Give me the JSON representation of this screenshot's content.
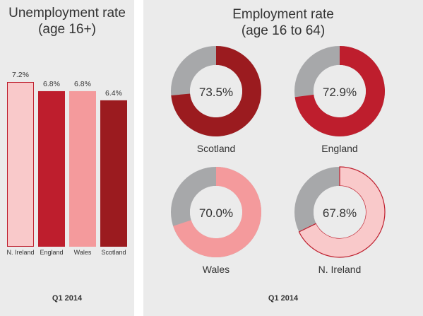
{
  "left_panel": {
    "title_line1": "Unemployment rate",
    "title_line2": "(age 16+)",
    "footer": "Q1 2014"
  },
  "right_panel": {
    "title_line1": "Employment rate",
    "title_line2": "(age 16 to 64)",
    "footer": "Q1 2014"
  },
  "chart_data": [
    {
      "type": "bar",
      "title": "Unemployment rate (age 16+)",
      "categories": [
        "N. Ireland",
        "England",
        "Wales",
        "Scotland"
      ],
      "values": [
        7.2,
        6.8,
        6.8,
        6.4
      ],
      "value_labels": [
        "7.2%",
        "6.8%",
        "6.8%",
        "6.4%"
      ],
      "colors": [
        "#f9c9ca",
        "#be1e2d",
        "#f49a9c",
        "#9b1b1f"
      ],
      "outline": [
        "#be1e2d",
        null,
        null,
        null
      ],
      "xlabel": "Q1 2014",
      "ylabel": ""
    },
    {
      "type": "pie",
      "title": "Employment rate (age 16 to 64)",
      "xlabel": "Q1 2014",
      "items": [
        {
          "label": "Scotland",
          "value": 73.5,
          "value_label": "73.5%",
          "color": "#9b1b1f"
        },
        {
          "label": "England",
          "value": 72.9,
          "value_label": "72.9%",
          "color": "#be1e2d"
        },
        {
          "label": "Wales",
          "value": 70.0,
          "value_label": "70.0%",
          "color": "#f49a9c"
        },
        {
          "label": "N. Ireland",
          "value": 67.8,
          "value_label": "67.8%",
          "color": "#f9c9ca",
          "outline": "#be1e2d"
        }
      ],
      "remainder_color": "#a7a8aa"
    }
  ]
}
